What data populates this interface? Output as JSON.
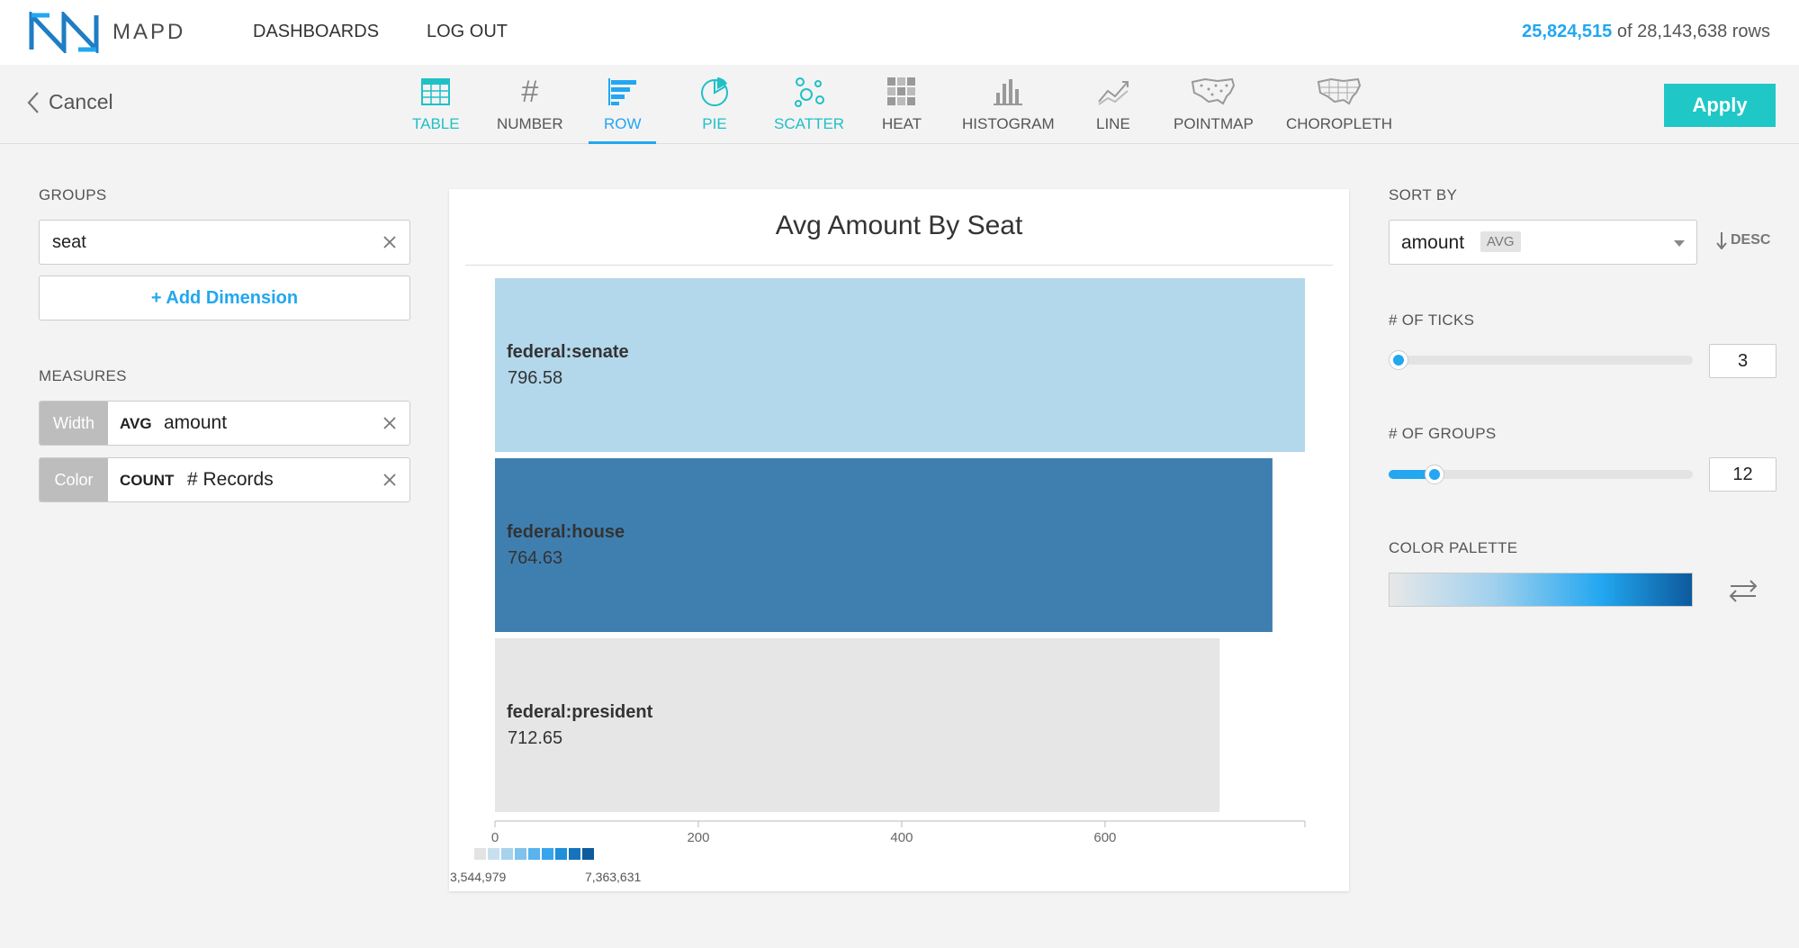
{
  "app": {
    "logo_text": "MAPD"
  },
  "nav": {
    "dashboards": "DASHBOARDS",
    "logout": "LOG OUT"
  },
  "rows": {
    "filtered": "25,824,515",
    "of_text": "of",
    "total": "28,143,638",
    "suffix": "rows"
  },
  "toolbar": {
    "cancel": "Cancel",
    "apply": "Apply",
    "chart_types": [
      {
        "label": "TABLE",
        "icon": "table-icon"
      },
      {
        "label": "NUMBER",
        "icon": "hash-icon"
      },
      {
        "label": "ROW",
        "icon": "row-chart-icon",
        "active": true
      },
      {
        "label": "PIE",
        "icon": "pie-icon"
      },
      {
        "label": "SCATTER",
        "icon": "scatter-icon"
      },
      {
        "label": "HEAT",
        "icon": "heat-icon"
      },
      {
        "label": "HISTOGRAM",
        "icon": "histogram-icon"
      },
      {
        "label": "LINE",
        "icon": "line-chart-icon"
      },
      {
        "label": "POINTMAP",
        "icon": "pointmap-icon"
      },
      {
        "label": "CHOROPLETH",
        "icon": "choropleth-icon"
      }
    ]
  },
  "left": {
    "groups_label": "GROUPS",
    "group_value": "seat",
    "add_dimension": "+ Add Dimension",
    "measures_label": "MEASURES",
    "measures": [
      {
        "tag": "Width",
        "agg": "AVG",
        "field": "amount"
      },
      {
        "tag": "Color",
        "agg": "COUNT",
        "field": "# Records"
      }
    ]
  },
  "right": {
    "sort_label": "SORT BY",
    "sort_value": "amount",
    "sort_badge": "AVG",
    "sort_dir": "DESC",
    "ticks_label": "# OF TICKS",
    "ticks_value": "3",
    "ticks_fraction": 0.0,
    "groups_label": "# OF GROUPS",
    "groups_value": "12",
    "groups_fraction": 0.12,
    "palette_label": "COLOR PALETTE"
  },
  "chart_data": {
    "type": "bar",
    "orientation": "horizontal",
    "title": "Avg Amount By Seat",
    "categories": [
      "federal:senate",
      "federal:house",
      "federal:president"
    ],
    "values": [
      796.58,
      764.63,
      712.65
    ],
    "value_labels": [
      "796.58",
      "764.63",
      "712.65"
    ],
    "colors": [
      "#b3d7eb",
      "#3f7fb0",
      "#e6e6e6"
    ],
    "xlim": [
      0,
      796.58
    ],
    "xticks": [
      0,
      200,
      400,
      600
    ],
    "color_legend": {
      "min_label": "3,544,979",
      "max_label": "7,363,631",
      "swatches": [
        "#e3e3e3",
        "#c8e0ee",
        "#a6d2ec",
        "#7fc2ec",
        "#58b3ee",
        "#36a5ee",
        "#1f8fd9",
        "#1574bb",
        "#0d5a9c"
      ]
    }
  }
}
